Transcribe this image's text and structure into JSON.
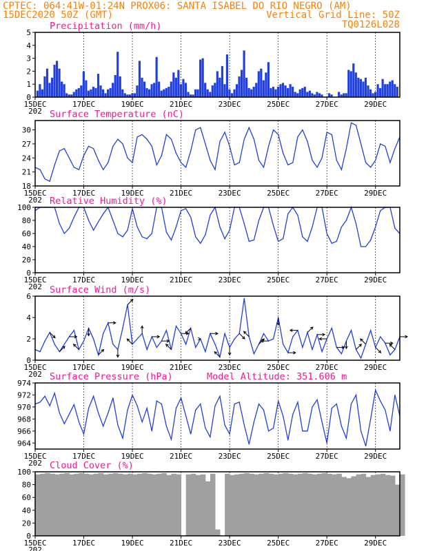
{
  "header": {
    "line1_left": "CPTEC:  064:41W-01:24N  PROX06: SANTA ISABEL DO RIO NEGRO (AM)",
    "line2_left": "15DEC2020 50Z (GMT)",
    "line2_right": "Vertical Grid Line: 50Z",
    "line3_right": "TQ0126L028"
  },
  "colors": {
    "header": "#ff7f00",
    "title": "#ff1493",
    "line": "#1f3fe0",
    "bar": "#1f3fe0",
    "cloud": "#a0a0a0",
    "arrow": "#000000"
  },
  "x_axis": {
    "tick_labels": [
      "15DEC",
      "17DEC",
      "19DEC",
      "21DEC",
      "23DEC",
      "25DEC",
      "27DEC",
      "29DEC"
    ],
    "clipped_year_label": "202",
    "start_day": 15,
    "end_day": 30
  },
  "chart_data": [
    {
      "id": "precip",
      "type": "bar",
      "title": "Precipitation (mm/h)",
      "ylim": [
        0,
        5
      ],
      "yticks": [
        "0",
        "1",
        "2",
        "3",
        "4",
        "5"
      ],
      "x": [
        15.1,
        15.2,
        15.3,
        15.4,
        15.5,
        15.6,
        15.7,
        15.8,
        15.9,
        16.0,
        16.1,
        16.2,
        16.3,
        16.4,
        16.5,
        16.6,
        16.7,
        16.8,
        16.9,
        17.0,
        17.1,
        17.2,
        17.3,
        17.4,
        17.5,
        17.6,
        17.7,
        17.8,
        17.9,
        18.0,
        18.1,
        18.2,
        18.3,
        18.4,
        18.5,
        18.6,
        18.7,
        18.8,
        18.9,
        19.0,
        19.1,
        19.2,
        19.3,
        19.4,
        19.5,
        19.6,
        19.7,
        19.8,
        19.9,
        20.0,
        20.1,
        20.2,
        20.3,
        20.4,
        20.5,
        20.6,
        20.7,
        20.8,
        20.9,
        21.0,
        21.1,
        21.2,
        21.3,
        21.4,
        21.5,
        21.6,
        21.7,
        21.8,
        21.9,
        22.0,
        22.1,
        22.2,
        22.3,
        22.4,
        22.5,
        22.6,
        22.7,
        22.8,
        22.9,
        23.0,
        23.1,
        23.2,
        23.3,
        23.4,
        23.5,
        23.6,
        23.7,
        23.8,
        23.9,
        24.0,
        24.1,
        24.2,
        24.3,
        24.4,
        24.5,
        24.6,
        24.7,
        24.8,
        24.9,
        25.0,
        25.1,
        25.2,
        25.3,
        25.4,
        25.5,
        25.6,
        25.7,
        25.8,
        25.9,
        26.0,
        26.1,
        26.2,
        26.3,
        26.4,
        26.5,
        26.6,
        26.7,
        26.8,
        26.9,
        27.0,
        27.1,
        27.2,
        27.3,
        27.4,
        27.5,
        27.6,
        27.7,
        27.8,
        27.9,
        28.0,
        28.1,
        28.2,
        28.3,
        28.4,
        28.5,
        28.6,
        28.7,
        28.8,
        28.9,
        29.0,
        29.1,
        29.2,
        29.3,
        29.4,
        29.5,
        29.6,
        29.7,
        29.8,
        29.9
      ],
      "values": [
        0.5,
        1.0,
        0.6,
        1.6,
        2.2,
        1.1,
        1.5,
        2.5,
        2.8,
        2.2,
        1.2,
        1.0,
        0.3,
        0.2,
        0.2,
        0.4,
        0.6,
        0.7,
        0.9,
        2.0,
        1.3,
        0.5,
        0.6,
        0.8,
        0.7,
        1.8,
        0.9,
        0.6,
        0.3,
        0.6,
        0.7,
        1.1,
        1.7,
        3.5,
        1.6,
        0.6,
        0.3,
        0.2,
        0.2,
        0.3,
        0.3,
        0.9,
        2.8,
        1.5,
        1.2,
        0.7,
        0.6,
        1.0,
        1.1,
        3.1,
        1.2,
        0.5,
        0.6,
        0.7,
        0.8,
        1.2,
        1.9,
        1.5,
        2.1,
        1.0,
        1.4,
        1.1,
        0.4,
        0.2,
        0.2,
        0.6,
        0.6,
        2.9,
        3.0,
        1.1,
        0.6,
        0.4,
        0.9,
        1.1,
        2.0,
        1.5,
        2.4,
        1.0,
        3.3,
        0.6,
        0.3,
        0.6,
        1.0,
        1.6,
        2.1,
        3.6,
        1.5,
        0.7,
        0.6,
        0.8,
        1.1,
        2.0,
        2.2,
        1.3,
        1.9,
        2.7,
        0.7,
        0.8,
        0.6,
        0.8,
        1.0,
        1.1,
        0.9,
        0.7,
        1.0,
        0.8,
        0.4,
        0.3,
        0.6,
        0.7,
        0.8,
        0.4,
        0.5,
        0.3,
        0.2,
        0.4,
        0.3,
        0.2,
        0.0,
        0.0,
        0.3,
        0.2,
        0.0,
        0.0,
        0.4,
        0.2,
        0.3,
        0.3,
        2.1,
        2.0,
        2.6,
        1.9,
        1.5,
        1.4,
        1.2,
        1.5,
        0.9,
        0.6,
        0.3,
        0.4,
        1.0,
        0.7,
        1.4,
        1.0,
        1.0,
        1.2,
        1.3,
        1.0,
        0.8
      ]
    },
    {
      "id": "temp",
      "type": "line",
      "title": "Surface Temperature (nC)",
      "ylim": [
        18,
        32
      ],
      "yticks": [
        "18",
        "21",
        "24",
        "27",
        "30"
      ],
      "x": [
        15.0,
        15.2,
        15.4,
        15.6,
        15.8,
        16.0,
        16.2,
        16.4,
        16.6,
        16.8,
        17.0,
        17.2,
        17.4,
        17.6,
        17.8,
        18.0,
        18.2,
        18.4,
        18.6,
        18.8,
        19.0,
        19.2,
        19.4,
        19.6,
        19.8,
        20.0,
        20.2,
        20.4,
        20.6,
        20.8,
        21.0,
        21.2,
        21.4,
        21.6,
        21.8,
        22.0,
        22.2,
        22.4,
        22.6,
        22.8,
        23.0,
        23.2,
        23.4,
        23.6,
        23.8,
        24.0,
        24.2,
        24.4,
        24.6,
        24.8,
        25.0,
        25.2,
        25.4,
        25.6,
        25.8,
        26.0,
        26.2,
        26.4,
        26.6,
        26.8,
        27.0,
        27.2,
        27.4,
        27.6,
        27.8,
        28.0,
        28.2,
        28.4,
        28.6,
        28.8,
        29.0,
        29.2,
        29.4,
        29.6,
        29.8,
        30.0
      ],
      "values": [
        22.0,
        21.5,
        19.5,
        19.0,
        22.5,
        25.5,
        26.0,
        24.0,
        22.0,
        21.5,
        24.5,
        26.5,
        26.0,
        23.5,
        21.5,
        23.0,
        26.5,
        28.0,
        27.0,
        24.0,
        23.0,
        28.5,
        29.0,
        28.0,
        26.5,
        22.5,
        24.5,
        29.0,
        28.0,
        25.0,
        23.0,
        22.0,
        25.5,
        30.0,
        30.5,
        27.0,
        23.5,
        21.5,
        27.5,
        29.5,
        26.5,
        22.5,
        23.0,
        28.0,
        30.5,
        28.0,
        23.5,
        22.0,
        26.5,
        30.0,
        29.0,
        25.0,
        22.5,
        23.0,
        28.5,
        30.0,
        27.5,
        23.5,
        22.0,
        24.0,
        29.5,
        29.0,
        23.5,
        21.5,
        26.0,
        31.5,
        31.0,
        27.0,
        23.0,
        22.0,
        23.5,
        27.0,
        26.5,
        23.0,
        26.0,
        28.5
      ]
    },
    {
      "id": "rh",
      "type": "line",
      "title": "Relative Humidity (%)",
      "ylim": [
        0,
        100
      ],
      "yticks": [
        "0",
        "20",
        "40",
        "60",
        "80",
        "100"
      ],
      "x": [
        15.0,
        15.2,
        15.4,
        15.6,
        15.8,
        16.0,
        16.2,
        16.4,
        16.6,
        16.8,
        17.0,
        17.2,
        17.4,
        17.6,
        17.8,
        18.0,
        18.2,
        18.4,
        18.6,
        18.8,
        19.0,
        19.2,
        19.4,
        19.6,
        19.8,
        20.0,
        20.2,
        20.4,
        20.6,
        20.8,
        21.0,
        21.2,
        21.4,
        21.6,
        21.8,
        22.0,
        22.2,
        22.4,
        22.6,
        22.8,
        23.0,
        23.2,
        23.4,
        23.6,
        23.8,
        24.0,
        24.2,
        24.4,
        24.6,
        24.8,
        25.0,
        25.2,
        25.4,
        25.6,
        25.8,
        26.0,
        26.2,
        26.4,
        26.6,
        26.8,
        27.0,
        27.2,
        27.4,
        27.6,
        27.8,
        28.0,
        28.2,
        28.4,
        28.6,
        28.8,
        29.0,
        29.2,
        29.4,
        29.6,
        29.8,
        30.0
      ],
      "values": [
        95,
        100,
        100,
        100,
        100,
        75,
        60,
        68,
        85,
        100,
        100,
        80,
        65,
        78,
        90,
        100,
        80,
        60,
        55,
        65,
        98,
        70,
        55,
        52,
        60,
        100,
        100,
        62,
        50,
        70,
        95,
        98,
        85,
        55,
        45,
        58,
        88,
        100,
        70,
        52,
        65,
        100,
        100,
        75,
        48,
        50,
        80,
        100,
        100,
        72,
        48,
        52,
        90,
        100,
        88,
        55,
        48,
        70,
        100,
        100,
        60,
        45,
        48,
        70,
        80,
        100,
        75,
        40,
        40,
        50,
        70,
        95,
        100,
        100,
        68,
        60
      ]
    },
    {
      "id": "wind",
      "type": "line",
      "title": "Surface Wind (m/s)",
      "ylim": [
        0,
        6
      ],
      "yticks": [
        "0",
        "2",
        "4",
        "6"
      ],
      "x": [
        15.0,
        15.2,
        15.4,
        15.6,
        15.8,
        16.0,
        16.2,
        16.4,
        16.6,
        16.8,
        17.0,
        17.2,
        17.4,
        17.6,
        17.8,
        18.0,
        18.2,
        18.4,
        18.6,
        18.8,
        19.0,
        19.2,
        19.4,
        19.6,
        19.8,
        20.0,
        20.2,
        20.4,
        20.6,
        20.8,
        21.0,
        21.2,
        21.4,
        21.6,
        21.8,
        22.0,
        22.2,
        22.4,
        22.6,
        22.8,
        23.0,
        23.2,
        23.4,
        23.6,
        23.8,
        24.0,
        24.2,
        24.4,
        24.6,
        24.8,
        25.0,
        25.2,
        25.4,
        25.6,
        25.8,
        26.0,
        26.2,
        26.4,
        26.6,
        26.8,
        27.0,
        27.2,
        27.4,
        27.6,
        27.8,
        28.0,
        28.2,
        28.4,
        28.6,
        28.8,
        29.0,
        29.2,
        29.4,
        29.6,
        29.8,
        30.0
      ],
      "values": [
        1.0,
        0.8,
        1.8,
        2.6,
        1.5,
        0.8,
        1.5,
        2.2,
        2.8,
        1.0,
        1.8,
        3.0,
        2.0,
        0.5,
        2.5,
        3.5,
        1.5,
        1.0,
        3.0,
        5.2,
        1.5,
        2.0,
        2.5,
        1.0,
        2.2,
        1.2,
        1.8,
        2.8,
        1.0,
        3.2,
        2.5,
        1.5,
        3.0,
        1.2,
        2.0,
        0.8,
        2.5,
        1.5,
        0.3,
        2.5,
        1.2,
        2.0,
        2.5,
        5.8,
        2.2,
        0.6,
        1.5,
        2.5,
        1.8,
        2.0,
        4.0,
        1.5,
        0.7,
        2.2,
        2.8,
        1.2,
        2.6,
        1.0,
        2.4,
        0.8,
        2.0,
        3.0,
        1.2,
        0.6,
        1.8,
        2.8,
        1.0,
        0.2,
        1.5,
        2.8,
        1.2,
        2.2,
        1.6,
        0.5,
        1.0,
        2.2
      ]
    },
    {
      "id": "pressure",
      "type": "line",
      "title": "Surface Pressure (hPa)",
      "ylim": [
        963,
        974
      ],
      "yticks": [
        "964",
        "966",
        "968",
        "970",
        "972",
        "974"
      ],
      "x": [
        15.0,
        15.2,
        15.4,
        15.6,
        15.8,
        16.0,
        16.2,
        16.4,
        16.6,
        16.8,
        17.0,
        17.2,
        17.4,
        17.6,
        17.8,
        18.0,
        18.2,
        18.4,
        18.6,
        18.8,
        19.0,
        19.2,
        19.4,
        19.6,
        19.8,
        20.0,
        20.2,
        20.4,
        20.6,
        20.8,
        21.0,
        21.2,
        21.4,
        21.6,
        21.8,
        22.0,
        22.2,
        22.4,
        22.6,
        22.8,
        23.0,
        23.2,
        23.4,
        23.6,
        23.8,
        24.0,
        24.2,
        24.4,
        24.6,
        24.8,
        25.0,
        25.2,
        25.4,
        25.6,
        25.8,
        26.0,
        26.2,
        26.4,
        26.6,
        26.8,
        27.0,
        27.2,
        27.4,
        27.6,
        27.8,
        28.0,
        28.2,
        28.4,
        28.6,
        28.8,
        29.0,
        29.2,
        29.4,
        29.6,
        29.8,
        30.0
      ],
      "values": [
        970.5,
        970.8,
        971.8,
        970.2,
        972.3,
        969.0,
        967.2,
        968.8,
        970.4,
        967.5,
        965.5,
        969.8,
        971.8,
        969.0,
        966.8,
        969.0,
        971.5,
        967.0,
        964.8,
        969.5,
        972.0,
        970.2,
        967.5,
        969.8,
        966.0,
        971.0,
        970.5,
        966.8,
        964.6,
        969.8,
        971.5,
        968.5,
        965.5,
        969.5,
        970.5,
        966.5,
        965.0,
        970.2,
        971.8,
        967.0,
        965.5,
        970.5,
        970.8,
        967.0,
        963.8,
        967.5,
        970.5,
        969.5,
        966.0,
        966.5,
        971.0,
        968.5,
        964.5,
        968.8,
        970.8,
        966.0,
        966.0,
        970.0,
        971.2,
        967.5,
        964.0,
        969.8,
        970.5,
        966.8,
        964.8,
        970.5,
        972.0,
        966.0,
        963.5,
        968.0,
        972.8,
        971.0,
        969.5,
        966.0,
        972.0,
        968.5
      ]
    },
    {
      "id": "cloud",
      "type": "area",
      "title": "Cloud Cover (%)",
      "ylim": [
        0,
        100
      ],
      "yticks": [
        "0",
        "20",
        "40",
        "60",
        "80",
        "100"
      ],
      "x": [
        15.0,
        15.2,
        15.4,
        15.6,
        15.8,
        16.0,
        16.2,
        16.4,
        16.6,
        16.8,
        17.0,
        17.2,
        17.4,
        17.6,
        17.8,
        18.0,
        18.2,
        18.4,
        18.6,
        18.8,
        19.0,
        19.2,
        19.4,
        19.6,
        19.8,
        20.0,
        20.2,
        20.4,
        20.6,
        20.8,
        21.0,
        21.2,
        21.4,
        21.6,
        21.8,
        22.0,
        22.2,
        22.4,
        22.6,
        22.8,
        23.0,
        23.2,
        23.4,
        23.6,
        23.8,
        24.0,
        24.2,
        24.4,
        24.6,
        24.8,
        25.0,
        25.2,
        25.4,
        25.6,
        25.8,
        26.0,
        26.2,
        26.4,
        26.6,
        26.8,
        27.0,
        27.2,
        27.4,
        27.6,
        27.8,
        28.0,
        28.2,
        28.4,
        28.6,
        28.8,
        29.0,
        29.2,
        29.4,
        29.6,
        29.8,
        30.0
      ],
      "values": [
        96,
        97,
        98,
        97,
        96,
        97,
        98,
        96,
        97,
        98,
        97,
        96,
        97,
        98,
        96,
        97,
        98,
        97,
        96,
        97,
        96,
        97,
        98,
        97,
        96,
        97,
        98,
        95,
        97,
        96,
        0,
        96,
        97,
        95,
        96,
        85,
        97,
        10,
        0,
        97,
        95,
        96,
        97,
        98,
        97,
        96,
        97,
        98,
        97,
        96,
        97,
        98,
        97,
        96,
        97,
        98,
        97,
        96,
        97,
        98,
        97,
        96,
        97,
        92,
        90,
        93,
        96,
        97,
        92,
        95,
        96,
        97,
        95,
        94,
        80,
        96
      ]
    }
  ],
  "wind_arrows": {
    "x": [
      15.6,
      16.0,
      16.4,
      16.8,
      17.2,
      17.6,
      18.0,
      18.4,
      18.8,
      19.0,
      19.4,
      19.8,
      20.2,
      20.6,
      21.0,
      21.4,
      21.8,
      22.2,
      22.6,
      23.0,
      23.4,
      23.8,
      24.2,
      24.6,
      25.0,
      25.4,
      25.8,
      26.2,
      26.6,
      27.0,
      27.4,
      27.8,
      28.2,
      28.6,
      29.0,
      29.4,
      29.8,
      30.0
    ],
    "u": [
      1,
      1,
      1,
      -1,
      0,
      1,
      1,
      0,
      1,
      -1,
      0,
      1,
      1,
      -1,
      1,
      -1,
      0,
      1,
      -1,
      0,
      1,
      -1,
      1,
      -1,
      0,
      1,
      -1,
      1,
      1,
      -1,
      1,
      0,
      1,
      -1,
      1,
      1,
      -1,
      1
    ],
    "v": [
      -1,
      1,
      0,
      1,
      -1,
      1,
      0,
      -1,
      1,
      1,
      1,
      0,
      0,
      1,
      0,
      -1,
      0,
      0,
      1,
      -1,
      -1,
      1,
      1,
      0,
      -1,
      0,
      0,
      1,
      0,
      0,
      0,
      -1,
      1,
      1,
      -1,
      0,
      1,
      0
    ]
  },
  "extra_label": "Model Altitude: 351.606 m"
}
